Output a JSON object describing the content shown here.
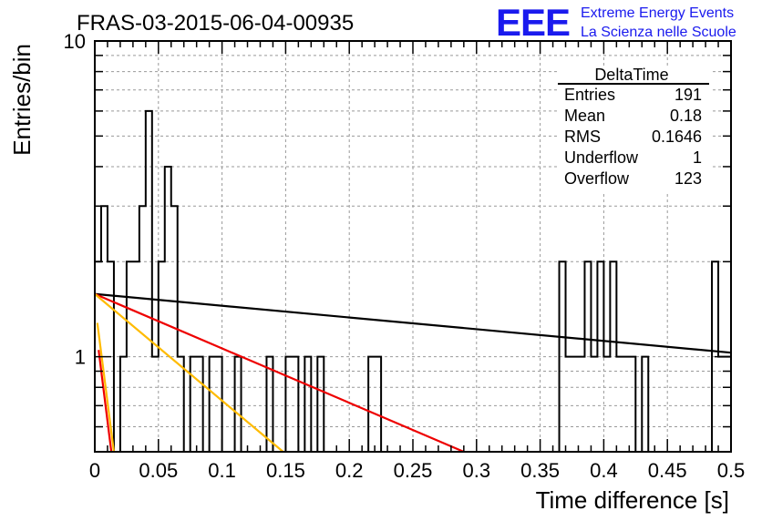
{
  "chart_data": {
    "type": "histogram",
    "title": "FRAS-03-2015-06-04-00935",
    "xlabel": "Time difference [s]",
    "ylabel": "Entries/bin",
    "xlim": [
      0,
      0.5
    ],
    "ylim": [
      0.5,
      10
    ],
    "yscale": "log",
    "grid": true,
    "x_ticks": [
      "0",
      "0.05",
      "0.1",
      "0.15",
      "0.2",
      "0.25",
      "0.3",
      "0.35",
      "0.4",
      "0.45",
      "0.5"
    ],
    "y_ticks": [
      "1",
      "10"
    ],
    "bin_width": 0.005,
    "bin_values": [
      2,
      3,
      2,
      0,
      1,
      2,
      2,
      3,
      6,
      1,
      2,
      4,
      3,
      1,
      0,
      1,
      1,
      0,
      1,
      1,
      0,
      0,
      1,
      0,
      0,
      0,
      0,
      1,
      0,
      0,
      1,
      1,
      0,
      1,
      0,
      1,
      0,
      0,
      0,
      0,
      0,
      0,
      0,
      1,
      1,
      0,
      0,
      0,
      0,
      0,
      0,
      0,
      0,
      0,
      0,
      0,
      0,
      0,
      0,
      0,
      0,
      0,
      0,
      0,
      0,
      0,
      0,
      0,
      0,
      0,
      0,
      0,
      0,
      2,
      1,
      1,
      1,
      2,
      1,
      2,
      1,
      2,
      1,
      1,
      1,
      0,
      1,
      0,
      0,
      0,
      0,
      0,
      0,
      0,
      0,
      0,
      0,
      2,
      1,
      1
    ],
    "fits": [
      {
        "color": "#000000",
        "points": [
          [
            0,
            1.58
          ],
          [
            0.5,
            1.03
          ]
        ]
      },
      {
        "color": "#ee0000",
        "points": [
          [
            0,
            1.58
          ],
          [
            0.29,
            0.5
          ]
        ]
      },
      {
        "color": "#ffbb00",
        "points": [
          [
            0,
            1.58
          ],
          [
            0.148,
            0.5
          ]
        ]
      },
      {
        "color": "#ee0000",
        "points": [
          [
            0.003,
            1.05
          ],
          [
            0.013,
            0.5
          ]
        ]
      },
      {
        "color": "#ffbb00",
        "points": [
          [
            0.002,
            1.28
          ],
          [
            0.015,
            0.5
          ]
        ]
      }
    ],
    "stats_box": {
      "name": "DeltaTime",
      "rows": [
        {
          "label": "Entries",
          "value": "191"
        },
        {
          "label": "Mean",
          "value": "0.18"
        },
        {
          "label": "RMS",
          "value": "0.1646"
        },
        {
          "label": "Underflow",
          "value": "1"
        },
        {
          "label": "Overflow",
          "value": "123"
        }
      ]
    }
  },
  "logo": {
    "mark": "EEE",
    "line1": "Extreme Energy Events",
    "line2": "La Scienza nelle Scuole",
    "color": "#1a1aee"
  }
}
